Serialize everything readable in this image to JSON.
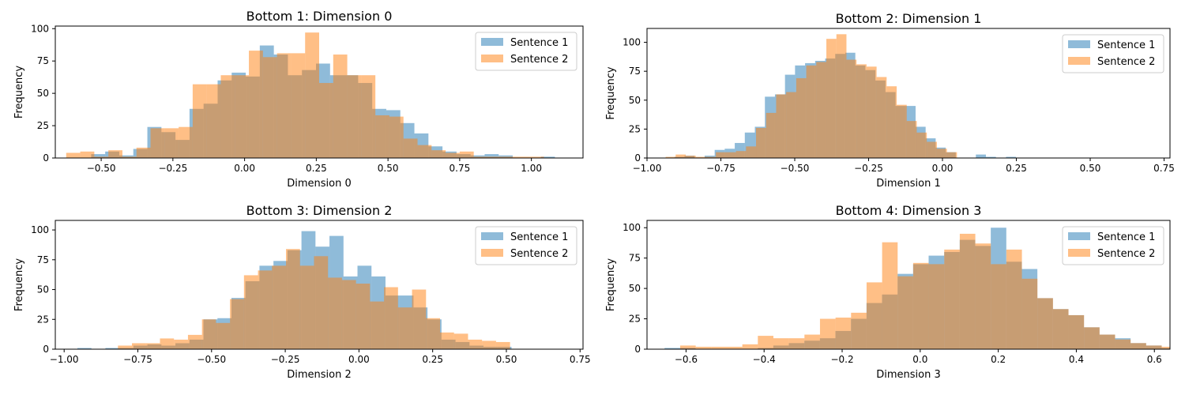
{
  "colors": {
    "sentence1": "#1f77b4",
    "sentence2": "#ff7f0e",
    "bar_alpha": 0.5
  },
  "legend": {
    "placement": "top-right"
  },
  "chart_data": [
    {
      "type": "histogram",
      "title": "Bottom 1: Dimension 0",
      "xlabel": "Dimension 0",
      "ylabel": "Frequency",
      "xlim": [
        -0.66,
        1.18
      ],
      "ylim": [
        0,
        102
      ],
      "xticks": [
        -0.5,
        -0.25,
        0.0,
        0.25,
        0.5,
        0.75,
        1.0
      ],
      "xtick_labels": [
        "−0.50",
        "−0.25",
        "0.00",
        "0.25",
        "0.50",
        "0.75",
        "1.00"
      ],
      "yticks": [
        0,
        25,
        50,
        75,
        100
      ],
      "series": [
        {
          "name": "Sentence 1",
          "bin_start": -0.535,
          "bin_width": 0.049,
          "values": [
            3,
            5,
            2,
            7,
            24,
            20,
            14,
            38,
            42,
            60,
            66,
            63,
            87,
            80,
            64,
            68,
            73,
            64,
            64,
            58,
            38,
            37,
            27,
            19,
            9,
            5,
            3,
            2,
            3,
            2,
            0,
            0,
            1
          ]
        },
        {
          "name": "Sentence 2",
          "bin_start": -0.622,
          "bin_width": 0.049,
          "values": [
            4,
            5,
            1,
            6,
            1,
            8,
            23,
            23,
            24,
            57,
            57,
            64,
            64,
            83,
            78,
            81,
            81,
            97,
            58,
            80,
            64,
            64,
            33,
            32,
            15,
            10,
            6,
            4,
            5,
            1,
            1,
            1,
            1,
            1,
            0,
            0
          ]
        }
      ]
    },
    {
      "type": "histogram",
      "title": "Bottom 2: Dimension 1",
      "xlabel": "Dimension 1",
      "ylabel": "Frequency",
      "xlim": [
        -1.0,
        0.77
      ],
      "ylim": [
        0,
        112
      ],
      "xticks": [
        -1.0,
        -0.75,
        -0.5,
        -0.25,
        0.0,
        0.25,
        0.5,
        0.75
      ],
      "xtick_labels": [
        "−1.00",
        "−0.75",
        "−0.50",
        "−0.25",
        "0.00",
        "0.25",
        "0.50",
        "0.75"
      ],
      "yticks": [
        0,
        25,
        50,
        75,
        100
      ],
      "series": [
        {
          "name": "Sentence 1",
          "bin_start": -0.907,
          "bin_width": 0.034,
          "values": [
            1,
            2,
            0,
            2,
            7,
            8,
            13,
            22,
            27,
            53,
            55,
            72,
            80,
            82,
            84,
            86,
            90,
            91,
            80,
            76,
            67,
            57,
            45,
            45,
            27,
            17,
            9,
            5,
            0,
            0,
            3,
            1,
            0,
            1
          ]
        },
        {
          "name": "Sentence 2",
          "bin_start": -0.937,
          "bin_width": 0.034,
          "values": [
            1,
            3,
            2,
            1,
            1,
            5,
            5,
            6,
            10,
            26,
            39,
            55,
            57,
            69,
            80,
            83,
            103,
            107,
            85,
            81,
            79,
            70,
            62,
            46,
            32,
            22,
            14,
            8,
            5,
            0,
            0,
            0,
            0,
            0
          ]
        }
      ]
    },
    {
      "type": "histogram",
      "title": "Bottom 3: Dimension 2",
      "xlabel": "Dimension 2",
      "ylabel": "Frequency",
      "xlim": [
        -1.03,
        0.76
      ],
      "ylim": [
        0,
        108
      ],
      "xticks": [
        -1.0,
        -0.75,
        -0.5,
        -0.25,
        0.0,
        0.25,
        0.5,
        0.75
      ],
      "xtick_labels": [
        "−1.00",
        "−0.75",
        "−0.50",
        "−0.25",
        "0.00",
        "0.25",
        "0.50",
        "0.75"
      ],
      "yticks": [
        0,
        25,
        50,
        75,
        100
      ],
      "series": [
        {
          "name": "Sentence 1",
          "bin_start": -0.955,
          "bin_width": 0.0475,
          "values": [
            1,
            0,
            1,
            1,
            3,
            4,
            3,
            5,
            8,
            25,
            26,
            43,
            57,
            70,
            74,
            83,
            99,
            86,
            95,
            61,
            70,
            61,
            45,
            45,
            35,
            25,
            8,
            6,
            3,
            2,
            2
          ]
        },
        {
          "name": "Sentence 2",
          "bin_start": -0.865,
          "bin_width": 0.0475,
          "values": [
            0,
            3,
            5,
            5,
            9,
            8,
            12,
            25,
            22,
            42,
            62,
            66,
            70,
            84,
            70,
            78,
            60,
            58,
            55,
            40,
            52,
            35,
            50,
            26,
            14,
            13,
            8,
            7,
            6
          ]
        }
      ]
    },
    {
      "type": "histogram",
      "title": "Bottom 4: Dimension 3",
      "xlabel": "Dimension 3",
      "ylabel": "Frequency",
      "xlim": [
        -0.7,
        0.64
      ],
      "ylim": [
        0,
        106
      ],
      "xticks": [
        -0.6,
        -0.4,
        -0.2,
        0.0,
        0.2,
        0.4,
        0.6
      ],
      "xtick_labels": [
        "−0.6",
        "−0.4",
        "−0.2",
        "0.0",
        "0.2",
        "0.4",
        "0.6"
      ],
      "yticks": [
        0,
        25,
        50,
        75,
        100
      ],
      "series": [
        {
          "name": "Sentence 1",
          "bin_start": -0.655,
          "bin_width": 0.0398,
          "values": [
            1,
            1,
            0,
            0,
            0,
            0,
            1,
            3,
            5,
            7,
            9,
            15,
            25,
            38,
            45,
            62,
            70,
            77,
            80,
            90,
            85,
            100,
            72,
            66,
            42,
            33,
            28,
            18,
            12,
            9,
            5,
            3,
            1
          ]
        },
        {
          "name": "Sentence 2",
          "bin_start": -0.615,
          "bin_width": 0.0398,
          "values": [
            3,
            2,
            2,
            2,
            4,
            11,
            9,
            9,
            12,
            25,
            26,
            30,
            55,
            88,
            60,
            71,
            70,
            82,
            95,
            87,
            70,
            82,
            58,
            42,
            33,
            28,
            18,
            12,
            8,
            5,
            3,
            2
          ]
        }
      ]
    }
  ]
}
